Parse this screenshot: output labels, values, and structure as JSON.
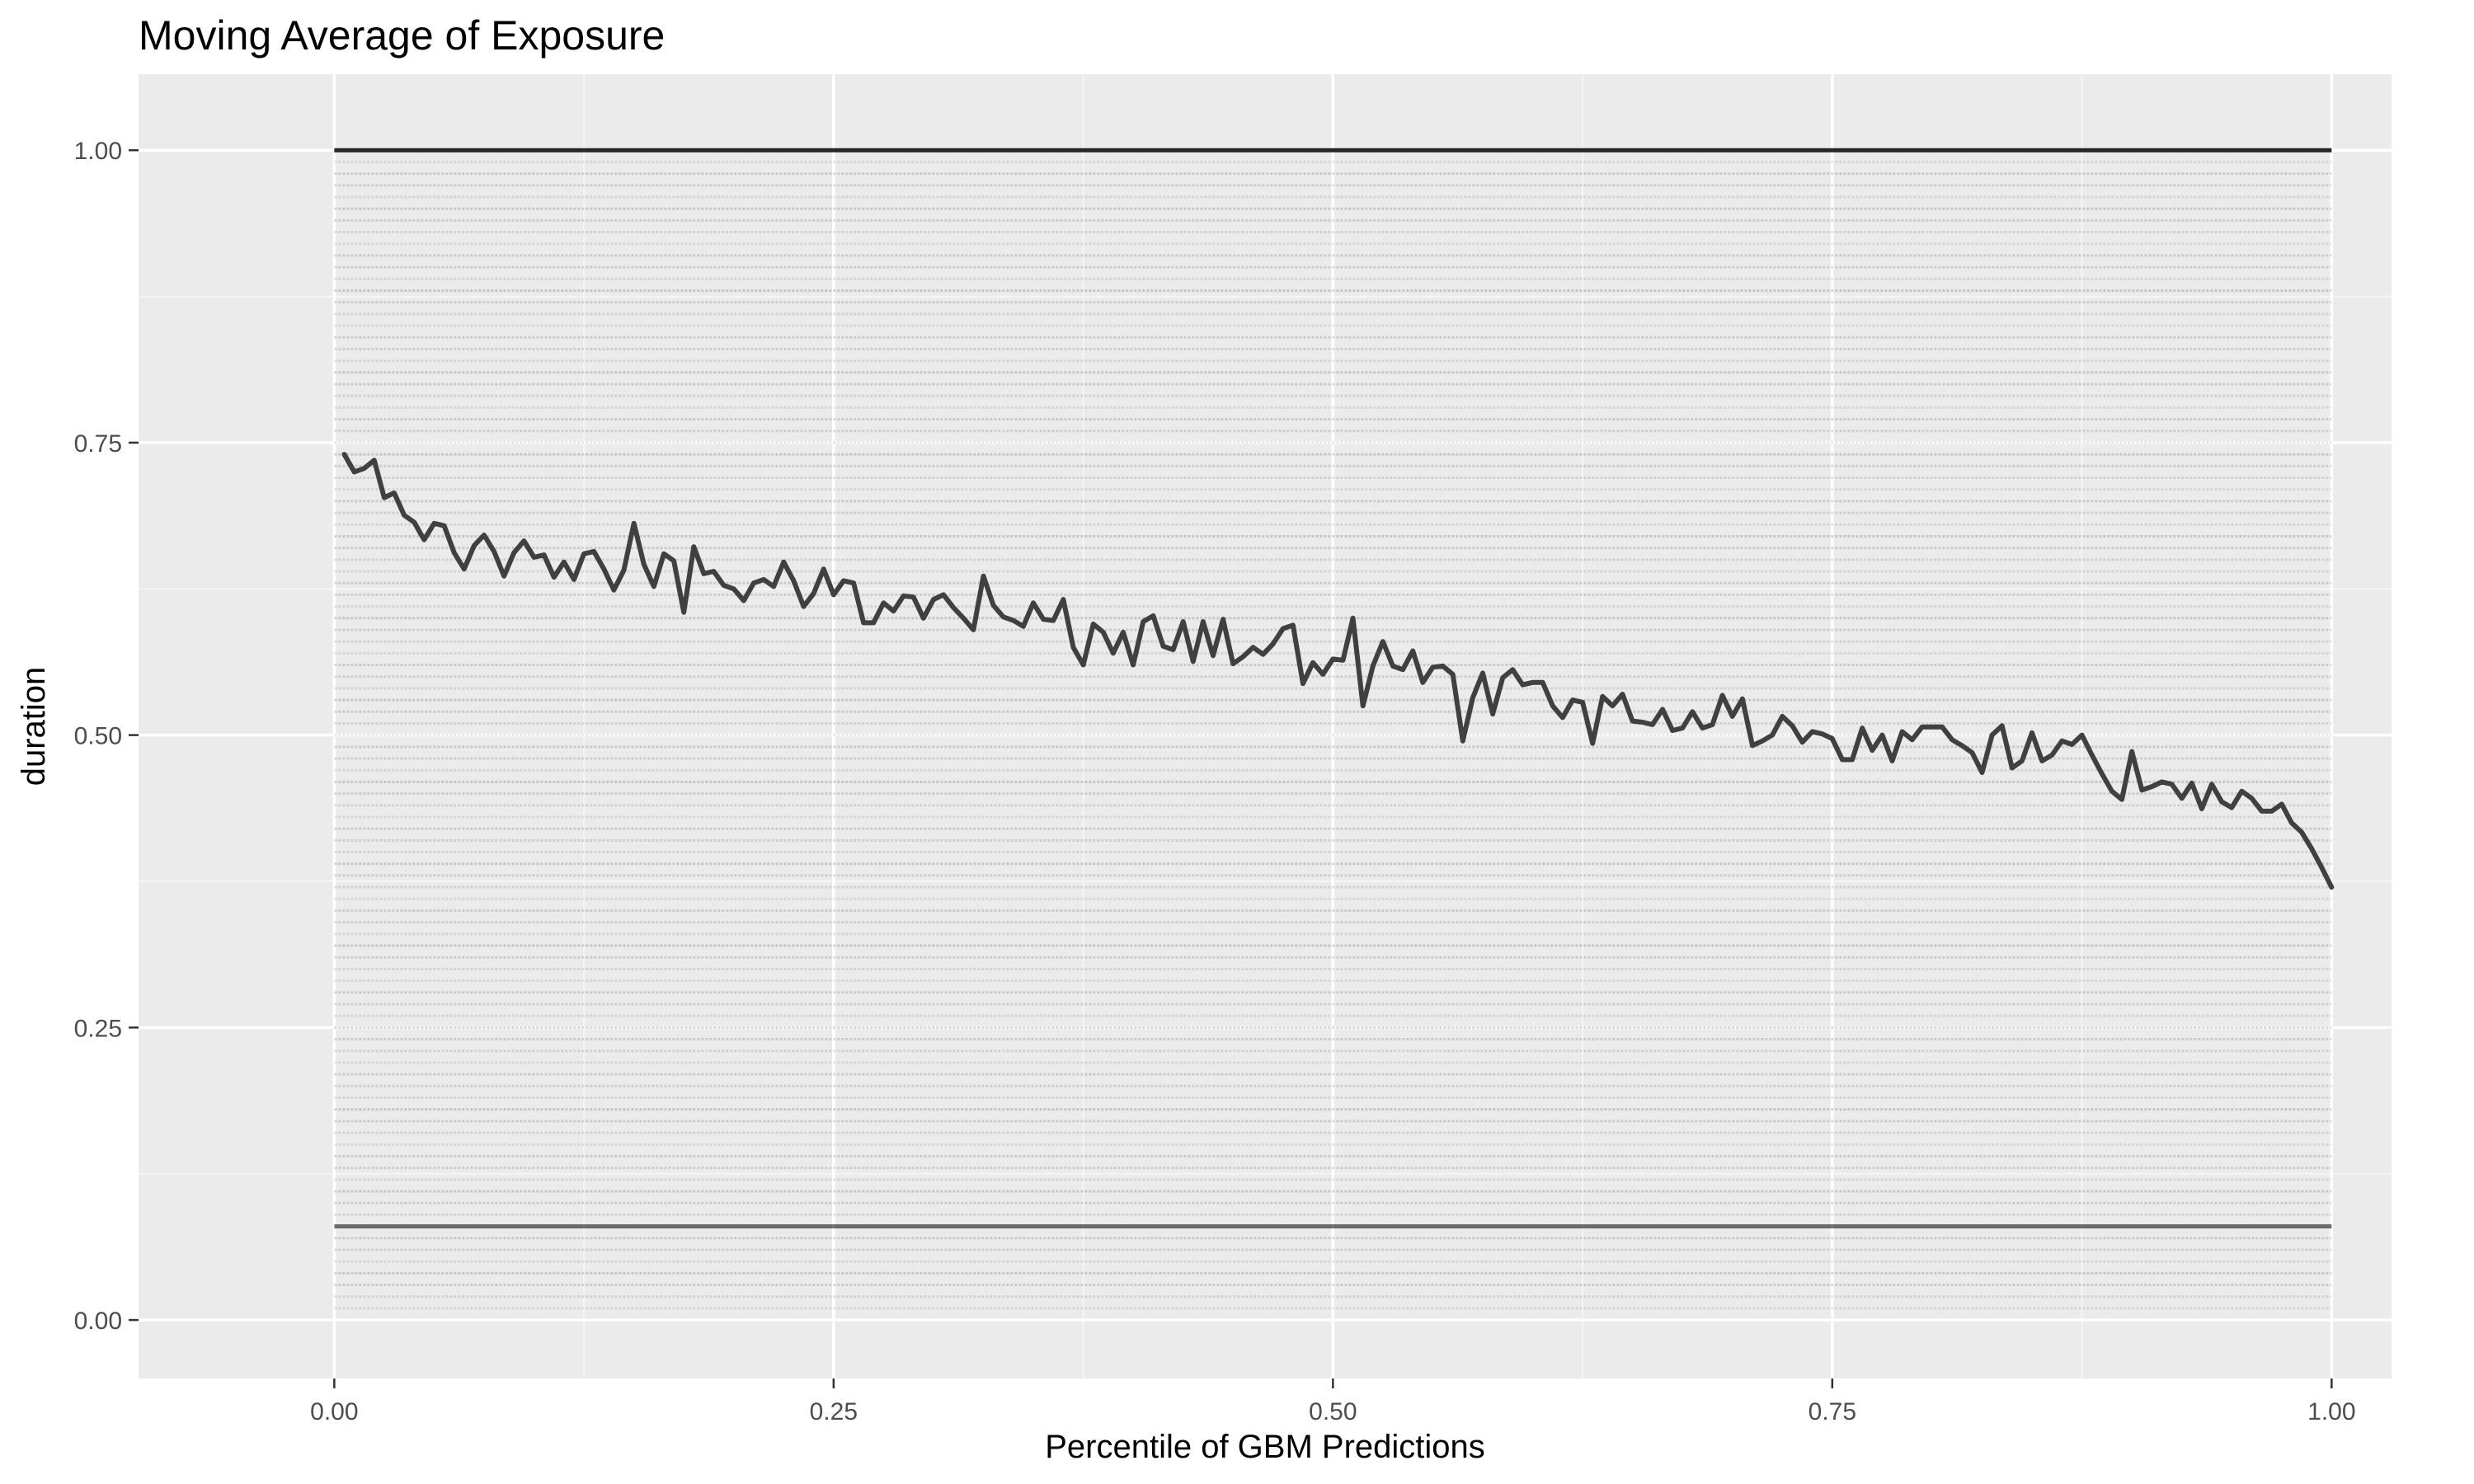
{
  "chart_data": {
    "type": "line",
    "title": "Moving Average of Exposure",
    "xlabel": "Percentile of GBM Predictions",
    "ylabel": "duration",
    "xlim": [
      -0.098,
      1.03
    ],
    "ylim": [
      -0.05,
      1.065
    ],
    "x_ticks": [
      0.0,
      0.25,
      0.5,
      0.75,
      1.0
    ],
    "x_tick_labels": [
      "0.00",
      "0.25",
      "0.50",
      "0.75",
      "1.00"
    ],
    "y_ticks": [
      0.0,
      0.25,
      0.5,
      0.75,
      1.0
    ],
    "y_tick_labels": [
      "0.00",
      "0.25",
      "0.50",
      "0.75",
      "1.00"
    ],
    "grid": true,
    "legend": "none",
    "colors": {
      "panel_background": "#ebebeb",
      "grid_major": "#ffffff",
      "grid_minor": "#f5f5f5",
      "moving_average_line": "#404040",
      "raw_points": "#000000"
    },
    "series": [
      {
        "kind": "moving-average-line",
        "x": [
          0.005,
          0.01,
          0.015,
          0.02,
          0.025,
          0.03,
          0.035,
          0.04,
          0.045,
          0.05,
          0.055,
          0.06,
          0.065,
          0.07,
          0.075,
          0.08,
          0.085,
          0.09,
          0.095,
          0.1,
          0.105,
          0.11,
          0.115,
          0.12,
          0.125,
          0.13,
          0.135,
          0.14,
          0.145,
          0.15,
          0.155,
          0.16,
          0.165,
          0.17,
          0.175,
          0.18,
          0.185,
          0.19,
          0.195,
          0.2,
          0.205,
          0.21,
          0.215,
          0.22,
          0.225,
          0.23,
          0.235,
          0.24,
          0.245,
          0.25,
          0.255,
          0.26,
          0.265,
          0.27,
          0.275,
          0.28,
          0.285,
          0.29,
          0.295,
          0.3,
          0.305,
          0.31,
          0.315,
          0.32,
          0.325,
          0.33,
          0.335,
          0.34,
          0.345,
          0.35,
          0.355,
          0.36,
          0.365,
          0.37,
          0.375,
          0.38,
          0.385,
          0.39,
          0.395,
          0.4,
          0.405,
          0.41,
          0.415,
          0.42,
          0.425,
          0.43,
          0.435,
          0.44,
          0.445,
          0.45,
          0.455,
          0.46,
          0.465,
          0.47,
          0.475,
          0.48,
          0.485,
          0.49,
          0.495,
          0.5,
          0.505,
          0.51,
          0.515,
          0.52,
          0.525,
          0.53,
          0.535,
          0.54,
          0.545,
          0.55,
          0.555,
          0.56,
          0.565,
          0.57,
          0.575,
          0.58,
          0.585,
          0.59,
          0.595,
          0.6,
          0.605,
          0.61,
          0.615,
          0.62,
          0.625,
          0.63,
          0.635,
          0.64,
          0.645,
          0.65,
          0.655,
          0.66,
          0.665,
          0.67,
          0.675,
          0.68,
          0.685,
          0.69,
          0.695,
          0.7,
          0.705,
          0.71,
          0.715,
          0.72,
          0.725,
          0.73,
          0.735,
          0.74,
          0.745,
          0.75,
          0.755,
          0.76,
          0.765,
          0.77,
          0.775,
          0.78,
          0.785,
          0.79,
          0.795,
          0.8,
          0.805,
          0.81,
          0.815,
          0.82,
          0.825,
          0.83,
          0.835,
          0.84,
          0.845,
          0.85,
          0.855,
          0.86,
          0.865,
          0.87,
          0.875,
          0.88,
          0.885,
          0.89,
          0.895,
          0.9,
          0.905,
          0.91,
          0.915,
          0.92,
          0.925,
          0.93,
          0.935,
          0.94,
          0.945,
          0.95,
          0.955,
          0.96,
          0.965,
          0.97,
          0.975,
          0.98,
          0.985,
          0.99,
          0.995,
          1.0
        ],
        "values": [
          0.74,
          0.725,
          0.728,
          0.735,
          0.703,
          0.707,
          0.688,
          0.682,
          0.667,
          0.681,
          0.679,
          0.656,
          0.642,
          0.662,
          0.671,
          0.657,
          0.636,
          0.656,
          0.666,
          0.652,
          0.654,
          0.635,
          0.648,
          0.633,
          0.655,
          0.657,
          0.642,
          0.624,
          0.641,
          0.681,
          0.646,
          0.627,
          0.655,
          0.649,
          0.605,
          0.661,
          0.638,
          0.64,
          0.628,
          0.625,
          0.615,
          0.63,
          0.633,
          0.627,
          0.648,
          0.632,
          0.61,
          0.621,
          0.642,
          0.62,
          0.632,
          0.63,
          0.596,
          0.596,
          0.613,
          0.606,
          0.619,
          0.618,
          0.6,
          0.616,
          0.62,
          0.609,
          0.6,
          0.59,
          0.636,
          0.611,
          0.601,
          0.598,
          0.593,
          0.613,
          0.599,
          0.598,
          0.616,
          0.575,
          0.56,
          0.595,
          0.588,
          0.57,
          0.588,
          0.56,
          0.597,
          0.602,
          0.576,
          0.573,
          0.597,
          0.563,
          0.597,
          0.568,
          0.599,
          0.561,
          0.567,
          0.575,
          0.569,
          0.578,
          0.591,
          0.594,
          0.544,
          0.562,
          0.552,
          0.565,
          0.564,
          0.6,
          0.525,
          0.559,
          0.58,
          0.559,
          0.556,
          0.572,
          0.545,
          0.558,
          0.559,
          0.552,
          0.495,
          0.532,
          0.553,
          0.518,
          0.549,
          0.556,
          0.543,
          0.545,
          0.545,
          0.525,
          0.515,
          0.53,
          0.528,
          0.493,
          0.533,
          0.525,
          0.535,
          0.512,
          0.511,
          0.509,
          0.522,
          0.504,
          0.506,
          0.52,
          0.506,
          0.509,
          0.534,
          0.516,
          0.531,
          0.491,
          0.495,
          0.5,
          0.516,
          0.508,
          0.494,
          0.503,
          0.501,
          0.497,
          0.479,
          0.479,
          0.506,
          0.487,
          0.5,
          0.478,
          0.503,
          0.496,
          0.507,
          0.507,
          0.507,
          0.496,
          0.491,
          0.485,
          0.468,
          0.5,
          0.508,
          0.472,
          0.478,
          0.502,
          0.478,
          0.483,
          0.495,
          0.492,
          0.5,
          0.483,
          0.467,
          0.452,
          0.445,
          0.486,
          0.453,
          0.456,
          0.46,
          0.458,
          0.446,
          0.459,
          0.437,
          0.458,
          0.443,
          0.438,
          0.452,
          0.446,
          0.435,
          0.435,
          0.441,
          0.425,
          0.417,
          0.403,
          0.387,
          0.37
        ]
      },
      {
        "kind": "raw-observations-rows",
        "note_free": true,
        "y_levels": [
          0.01,
          0.02,
          0.03,
          0.04,
          0.05,
          0.06,
          0.07,
          0.08,
          0.09,
          0.1,
          0.11,
          0.12,
          0.13,
          0.14,
          0.15,
          0.16,
          0.17,
          0.18,
          0.19,
          0.2,
          0.21,
          0.22,
          0.23,
          0.24,
          0.25,
          0.26,
          0.27,
          0.28,
          0.29,
          0.3,
          0.31,
          0.32,
          0.33,
          0.34,
          0.35,
          0.36,
          0.37,
          0.38,
          0.39,
          0.4,
          0.41,
          0.42,
          0.43,
          0.44,
          0.45,
          0.46,
          0.47,
          0.48,
          0.49,
          0.5,
          0.51,
          0.52,
          0.53,
          0.54,
          0.55,
          0.56,
          0.57,
          0.58,
          0.59,
          0.6,
          0.61,
          0.62,
          0.63,
          0.64,
          0.65,
          0.66,
          0.67,
          0.68,
          0.69,
          0.7,
          0.71,
          0.72,
          0.73,
          0.74,
          0.75,
          0.76,
          0.77,
          0.78,
          0.79,
          0.8,
          0.81,
          0.82,
          0.83,
          0.84,
          0.85,
          0.86,
          0.87,
          0.88,
          0.89,
          0.9,
          0.91,
          0.92,
          0.93,
          0.94,
          0.95,
          0.96,
          0.97,
          0.98,
          0.99,
          1.0
        ],
        "x_range": [
          0.0,
          1.0
        ],
        "emphasized_levels": [
          1.0,
          0.08
        ]
      }
    ]
  }
}
